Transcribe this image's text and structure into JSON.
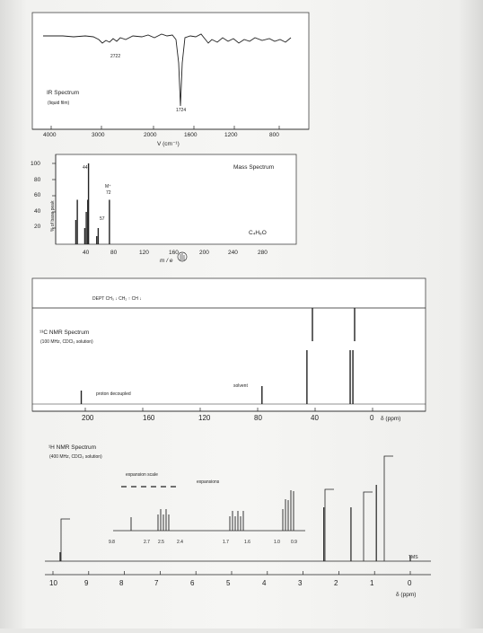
{
  "ir": {
    "title": "IR Spectrum",
    "subtitle": "(liquid film)",
    "peak_labels": [
      "2722",
      "1724"
    ],
    "axis_ticks": [
      "4000",
      "3000",
      "2000",
      "1600",
      "1200",
      "800"
    ],
    "axis_label": "V (cm⁻¹)"
  },
  "ms": {
    "title": "Mass Spectrum",
    "formula": "C₄H₈O",
    "y_ticks": [
      "100",
      "80",
      "60",
      "40",
      "20"
    ],
    "y_label": "% of base peak",
    "x_ticks": [
      "40",
      "80",
      "120",
      "160",
      "200",
      "240",
      "280"
    ],
    "x_label": "m / e",
    "peak_labels": [
      "44",
      "M⁺",
      "72",
      "57"
    ]
  },
  "c13": {
    "dept_label": "DEPT CH₃ ↓ CH₂ ↑ CH ↓",
    "title": "¹³C NMR Spectrum",
    "subtitle": "(100 MHz, CDCl₃ solution)",
    "decoupled_label": "proton decoupled",
    "solvent_label": "solvent",
    "x_ticks": [
      "200",
      "160",
      "120",
      "80",
      "40",
      "0"
    ],
    "x_label": "δ (ppm)"
  },
  "h1": {
    "title": "¹H NMR Spectrum",
    "subtitle": "(400 MHz, CDCl₃ solution)",
    "expansion_scale_label": "expansion scale",
    "expansions_label": "expansions",
    "expansion_ticks": [
      "9.8",
      "2.7",
      "2.5",
      "2.4",
      "1.7",
      "1.6",
      "1.0",
      "0.9"
    ],
    "tms_label": "TMS",
    "x_ticks": [
      "10",
      "9",
      "8",
      "7",
      "6",
      "5",
      "4",
      "3",
      "2",
      "1",
      "0"
    ],
    "x_label": "δ (ppm)"
  },
  "chart_data": [
    {
      "type": "line",
      "title": "IR Spectrum",
      "xlabel": "V (cm⁻¹)",
      "xlim": [
        4000,
        600
      ],
      "x": [
        4000,
        3000,
        2722,
        1724,
        1200,
        800
      ],
      "annotations": [
        "2722",
        "1724"
      ]
    },
    {
      "type": "bar",
      "title": "Mass Spectrum",
      "xlabel": "m / e",
      "ylabel": "% of base peak",
      "xlim": [
        0,
        290
      ],
      "ylim": [
        0,
        100
      ],
      "x": [
        27,
        29,
        39,
        41,
        43,
        44,
        55,
        57,
        72
      ],
      "values": [
        30,
        55,
        20,
        40,
        55,
        100,
        10,
        20,
        55
      ],
      "annotations": [
        "44",
        "M⁺",
        "72",
        "57"
      ]
    },
    {
      "type": "bar",
      "title": "¹³C NMR Spectrum",
      "xlabel": "δ (ppm)",
      "xlim": [
        220,
        0
      ],
      "x": [
        202.8,
        77.0,
        45.7,
        15.6,
        13.7
      ],
      "values": [
        15,
        20,
        60,
        60,
        60
      ]
    },
    {
      "type": "line",
      "title": "¹H NMR Spectrum",
      "xlabel": "δ (ppm)",
      "xlim": [
        10.5,
        -0.3
      ],
      "x": [
        9.8,
        2.42,
        1.66,
        0.95,
        0.0
      ],
      "annotations": [
        "9.8",
        "2.7",
        "2.5",
        "2.4",
        "1.7",
        "1.6",
        "1.0",
        "0.9",
        "TMS"
      ]
    }
  ]
}
